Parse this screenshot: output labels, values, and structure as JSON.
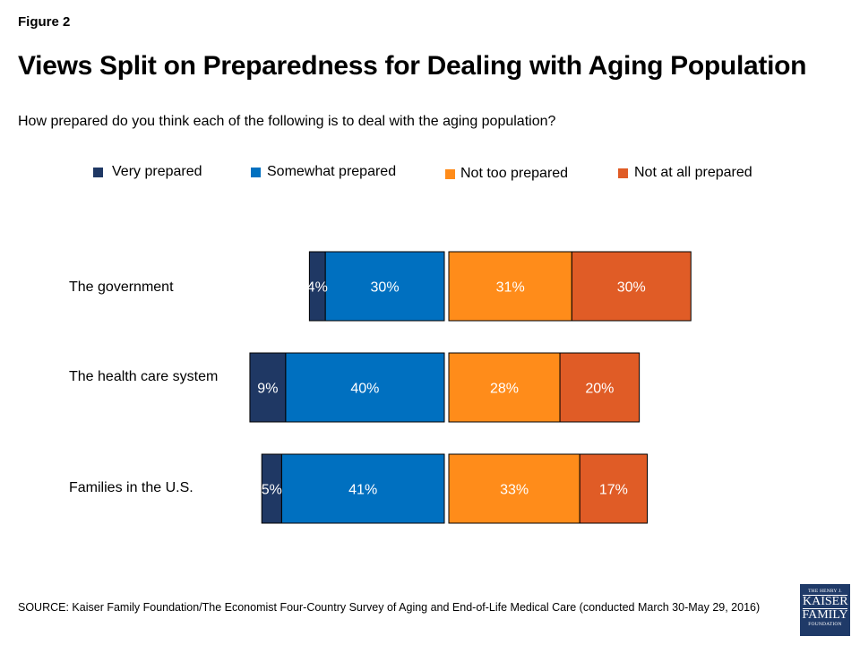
{
  "figure_label": "Figure 2",
  "title": "Views Split on Preparedness for Dealing with Aging Population",
  "subtitle": "How prepared do you think each of the following is to deal with the aging population?",
  "source": "SOURCE: Kaiser Family Foundation/The Economist Four-Country Survey of Aging and End-of-Life Medical Care (conducted March 30-May 29, 2016)",
  "logo": {
    "line1": "THE HENRY J.",
    "line2": "KAISER",
    "line3": "FAMILY",
    "line4": "FOUNDATION"
  },
  "colors": {
    "very_prepared": "#1f3864",
    "somewhat_prepared": "#0070c0",
    "not_too_prepared": "#ff8c1a",
    "not_at_all_prepared": "#e05c26"
  },
  "chart_data": {
    "type": "bar",
    "orientation": "horizontal",
    "stacked": "diverging",
    "categories": [
      "The government",
      "The health care system",
      "Families in the U.S."
    ],
    "series": [
      {
        "name": "Very prepared",
        "side": "left",
        "values": [
          4,
          9,
          5
        ],
        "labels": [
          "4%",
          "9%",
          "5%"
        ]
      },
      {
        "name": "Somewhat prepared",
        "side": "left",
        "values": [
          30,
          40,
          41
        ],
        "labels": [
          "30%",
          "40%",
          "41%"
        ]
      },
      {
        "name": "Not too prepared",
        "side": "right",
        "values": [
          31,
          28,
          33
        ],
        "labels": [
          "31%",
          "28%",
          "33%"
        ]
      },
      {
        "name": "Not at all prepared",
        "side": "right",
        "values": [
          30,
          20,
          17
        ],
        "labels": [
          "30%",
          "20%",
          "17%"
        ]
      }
    ],
    "legend_position": "top",
    "grid": false
  }
}
